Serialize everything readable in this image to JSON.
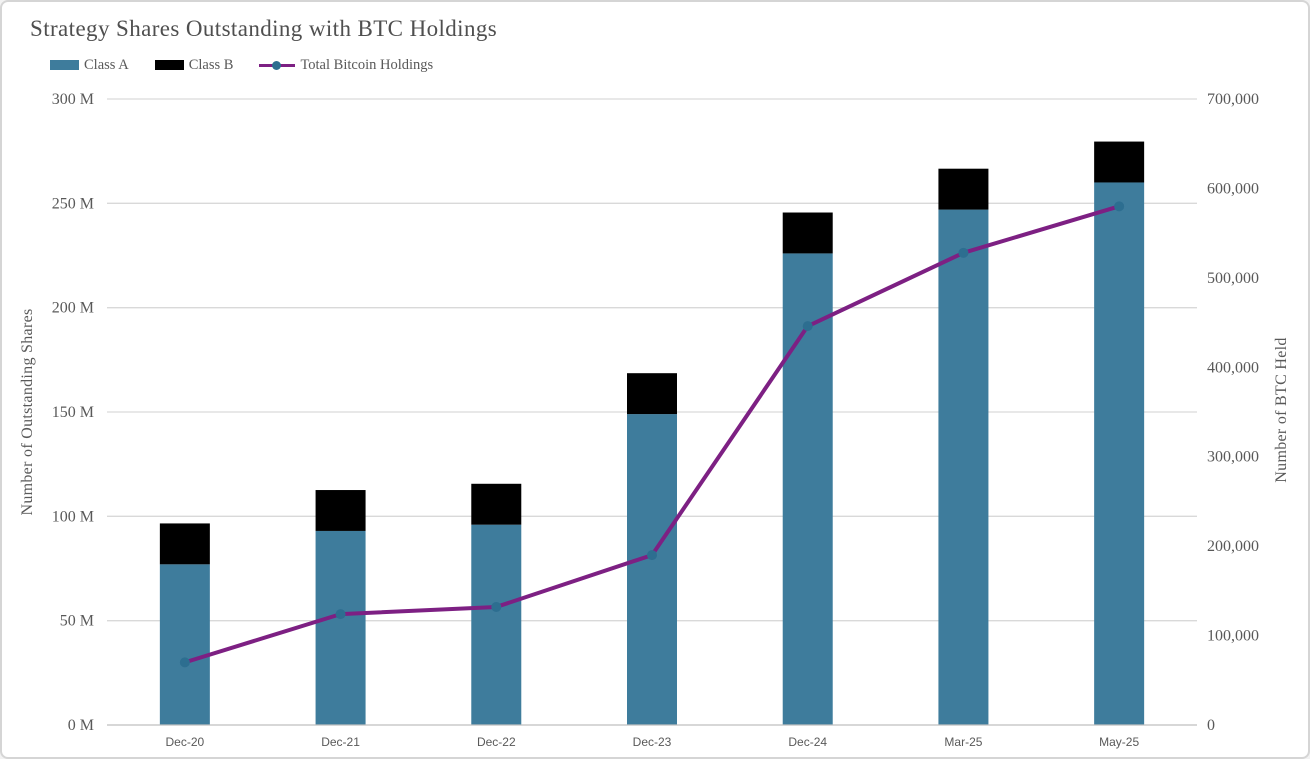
{
  "colors": {
    "background": "#ffffff",
    "card_border": "#d5d5d5",
    "title_text": "#4f4f4f",
    "label_text": "#595959",
    "gridline": "#d9d9d9",
    "axis_line": "#bfbfbf"
  },
  "chart_data": {
    "type": "bar",
    "subtype": "stacked-bars-with-line-dual-axis",
    "title": "Strategy Shares Outstanding with BTC Holdings",
    "categories": [
      "Dec-20",
      "Dec-21",
      "Dec-22",
      "Dec-23",
      "Dec-24",
      "Mar-25",
      "May-25"
    ],
    "bar_series": [
      {
        "name": "Class A",
        "color": "#3e7c9c",
        "axis": "left",
        "values_millions": [
          77,
          93,
          96,
          149,
          226,
          247,
          260
        ]
      },
      {
        "name": "Class B",
        "color": "#000000",
        "axis": "left",
        "values_millions": [
          19.6,
          19.6,
          19.6,
          19.6,
          19.6,
          19.6,
          19.6
        ]
      }
    ],
    "line_series": {
      "name": "Total Bitcoin Holdings",
      "color": "#7d2083",
      "marker_color": "#2d6e90",
      "axis": "right",
      "values": [
        70000,
        124000,
        132000,
        190000,
        446000,
        528000,
        580000
      ]
    },
    "left_axis": {
      "title": "Number of Outstanding Shares",
      "min": 0,
      "max": 300000000,
      "tick_step": 50000000,
      "ticks": [
        "0 M",
        "50 M",
        "100 M",
        "150 M",
        "200 M",
        "250 M",
        "300 M"
      ]
    },
    "right_axis": {
      "title": "Number of BTC Held",
      "min": 0,
      "max": 700000,
      "tick_step": 100000,
      "ticks": [
        "0",
        "100,000",
        "200,000",
        "300,000",
        "400,000",
        "500,000",
        "600,000",
        "700,000"
      ]
    },
    "grid": true,
    "legend_position": "top-left"
  }
}
